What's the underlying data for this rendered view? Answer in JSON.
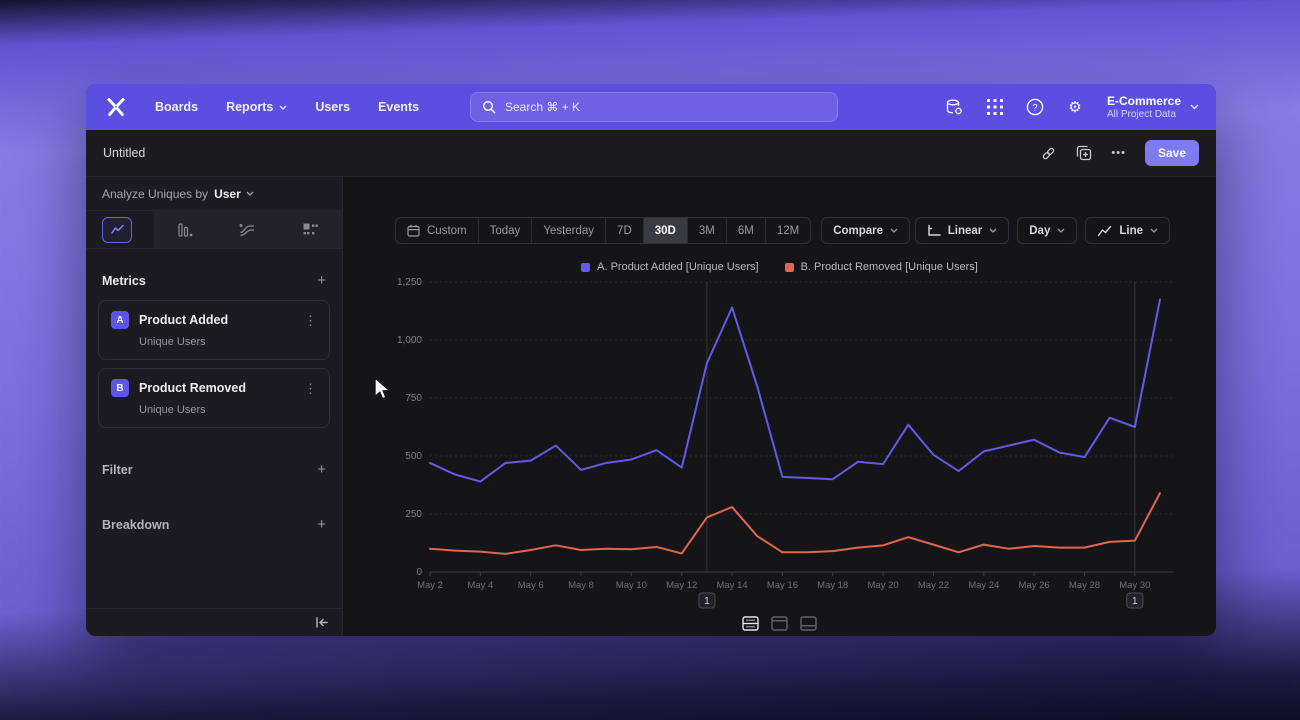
{
  "nav": {
    "menu": [
      "Boards",
      "Reports",
      "Users",
      "Events"
    ],
    "search_placeholder": "Search  ⌘ + K",
    "project": {
      "name": "E-Commerce",
      "subtitle": "All Project Data"
    }
  },
  "titlebar": {
    "title": "Untitled",
    "save_label": "Save"
  },
  "sidebar": {
    "analyze_label": "Analyze Uniques by",
    "analyze_value": "User",
    "metrics_header": "Metrics",
    "metrics": [
      {
        "badge": "A",
        "name": "Product Added",
        "subtitle": "Unique Users"
      },
      {
        "badge": "B",
        "name": "Product Removed",
        "subtitle": "Unique Users"
      }
    ],
    "filter_label": "Filter",
    "breakdown_label": "Breakdown"
  },
  "toolbar": {
    "date_ranges": [
      "Custom",
      "Today",
      "Yesterday",
      "7D",
      "30D",
      "3M",
      "6M",
      "12M"
    ],
    "selected_range": "30D",
    "compare_label": "Compare",
    "scale_label": "Linear",
    "interval_label": "Day",
    "chart_type_label": "Line"
  },
  "icons": {
    "settings_glyph": "⚙",
    "help_glyph": "?",
    "kebab_glyph": "⋮",
    "more_glyph": "•••",
    "plus_glyph": "+"
  },
  "chart_data": {
    "type": "line",
    "title": "",
    "xlabel": "",
    "ylabel": "",
    "grid": "horizontal-dashed",
    "legend_position": "top-center",
    "ylim": [
      0,
      1250
    ],
    "yticks": [
      0,
      250,
      500,
      750,
      1000,
      1250
    ],
    "ytick_labels": [
      "0",
      "250",
      "500",
      "750",
      "1,000",
      "1,250"
    ],
    "x_tick_every": 2,
    "x": [
      "May 2",
      "May 3",
      "May 4",
      "May 5",
      "May 6",
      "May 7",
      "May 8",
      "May 9",
      "May 10",
      "May 11",
      "May 12",
      "May 13",
      "May 14",
      "May 15",
      "May 16",
      "May 17",
      "May 18",
      "May 19",
      "May 20",
      "May 21",
      "May 22",
      "May 23",
      "May 24",
      "May 25",
      "May 26",
      "May 27",
      "May 28",
      "May 29",
      "May 30",
      "May 31"
    ],
    "series": [
      {
        "name": "A. Product Added [Unique Users]",
        "color": "#6459e8",
        "values": [
          470,
          420,
          390,
          470,
          480,
          545,
          440,
          470,
          485,
          525,
          450,
          900,
          1140,
          800,
          410,
          405,
          400,
          475,
          465,
          635,
          505,
          435,
          520,
          545,
          570,
          515,
          495,
          665,
          625,
          1175
        ]
      },
      {
        "name": "B. Product Removed [Unique Users]",
        "color": "#e0664e",
        "values": [
          100,
          92,
          88,
          78,
          95,
          115,
          95,
          100,
          98,
          108,
          80,
          235,
          280,
          155,
          85,
          85,
          90,
          105,
          115,
          150,
          118,
          85,
          118,
          100,
          112,
          105,
          105,
          130,
          135,
          340
        ]
      }
    ],
    "annotations": [
      {
        "x": "May 13",
        "label": "1"
      },
      {
        "x": "May 30",
        "label": "1"
      }
    ]
  }
}
